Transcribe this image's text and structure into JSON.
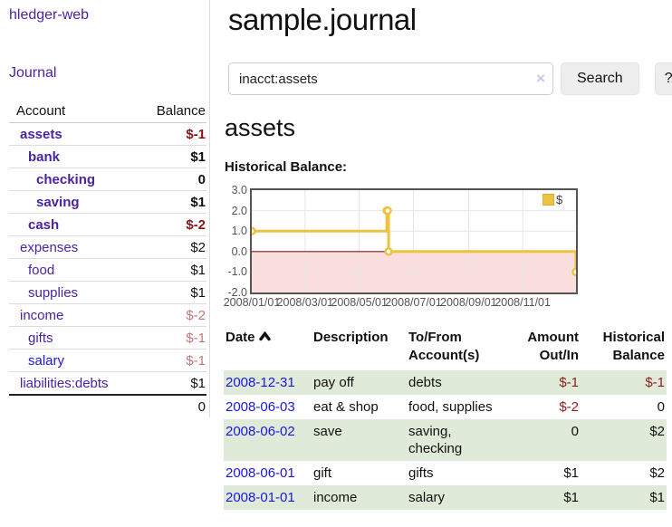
{
  "colors": {
    "link_visited": "#4a23a3",
    "link_unvisited": "#1b16e0",
    "negative_strong": "#8b1515",
    "negative_soft": "#c47777",
    "register_negative": "#8f1d1d",
    "row_stripe_green": "#dfead9",
    "chart_line": "#edc240",
    "chart_negative_fill": "#fadddd",
    "chart_zero_line": "#8b1a1a",
    "chart_grid": "#e6e6e6",
    "chart_border": "#545454"
  },
  "sidebar": {
    "brand": "hledger-web",
    "journal_link": "Journal",
    "accounts_table": {
      "header_account": "Account",
      "header_balance": "Balance",
      "rows": [
        {
          "name": "assets",
          "indent": 1,
          "bold": true,
          "link": "visited",
          "balance": "$-1",
          "balance_style": "negative-strong"
        },
        {
          "name": "bank",
          "indent": 2,
          "bold": true,
          "link": "visited",
          "balance": "$1",
          "balance_style": "positive"
        },
        {
          "name": "checking",
          "indent": 3,
          "bold": true,
          "link": "visited",
          "balance": "0",
          "balance_style": "positive"
        },
        {
          "name": "saving",
          "indent": 3,
          "bold": true,
          "link": "visited",
          "balance": "$1",
          "balance_style": "positive"
        },
        {
          "name": "cash",
          "indent": 2,
          "bold": true,
          "link": "visited",
          "balance": "$-2",
          "balance_style": "negative-strong"
        },
        {
          "name": "expenses",
          "indent": 1,
          "bold": false,
          "link": "visited",
          "balance": "$2",
          "balance_style": "positive"
        },
        {
          "name": "food",
          "indent": 2,
          "bold": false,
          "link": "visited",
          "balance": "$1",
          "balance_style": "positive"
        },
        {
          "name": "supplies",
          "indent": 2,
          "bold": false,
          "link": "visited",
          "balance": "$1",
          "balance_style": "positive"
        },
        {
          "name": "income",
          "indent": 1,
          "bold": false,
          "link": "visited",
          "balance": "$-2",
          "balance_style": "negative-soft"
        },
        {
          "name": "gifts",
          "indent": 2,
          "bold": false,
          "link": "visited",
          "balance": "$-1",
          "balance_style": "negative-soft"
        },
        {
          "name": "salary",
          "indent": 2,
          "bold": false,
          "link": "unvisited",
          "balance": "$-1",
          "balance_style": "negative-soft"
        },
        {
          "name": "liabilities:debts",
          "indent": 1,
          "bold": false,
          "link": "visited",
          "balance": "$1",
          "balance_style": "positive"
        }
      ],
      "total": "0"
    }
  },
  "main": {
    "title": "sample.journal",
    "search": {
      "value": "inacct:assets",
      "clear_icon": "×",
      "button_label": "Search",
      "help_label": "?"
    },
    "account_heading": "assets",
    "chart_label": "Historical Balance:"
  },
  "chart_data": {
    "type": "line",
    "step": true,
    "title": "Historical Balance:",
    "legend": {
      "label": "$",
      "position": "top-right"
    },
    "series": [
      {
        "name": "$",
        "color": "#edc240",
        "points": [
          [
            "2008-01-01",
            1
          ],
          [
            "2008-06-01",
            2
          ],
          [
            "2008-06-02",
            2
          ],
          [
            "2008-06-03",
            0
          ],
          [
            "2008-12-31",
            -1
          ]
        ]
      }
    ],
    "x_range": [
      "2008-01-01",
      "2008-12-31"
    ],
    "x_ticks": [
      "2008/01/01",
      "2008/03/01",
      "2008/05/01",
      "2008/07/01",
      "2008/09/01",
      "2008/11/01"
    ],
    "y_ticks": [
      "3.0",
      "2.0",
      "1.0",
      "0.0",
      "-1.0",
      "-2.0"
    ],
    "ylim": [
      -2,
      3
    ],
    "grid": true,
    "negative_region_fill": true
  },
  "register_table": {
    "headers": {
      "date": "Date",
      "sort": "ascending",
      "description": "Description",
      "tofrom_line1": "To/From",
      "tofrom_line2": "Account(s)",
      "amount_line1": "Amount",
      "amount_line2": "Out/In",
      "historical_line1": "Historical",
      "historical_line2": "Balance"
    },
    "rows": [
      {
        "date": "2008-12-31",
        "description": "pay off",
        "accounts": "debts",
        "amount": "$-1",
        "amount_negative": true,
        "balance": "$-1",
        "balance_negative": true
      },
      {
        "date": "2008-06-03",
        "description": "eat & shop",
        "accounts": "food, supplies",
        "amount": "$-2",
        "amount_negative": true,
        "balance": "0",
        "balance_negative": false
      },
      {
        "date": "2008-06-02",
        "description": "save",
        "accounts": "saving, checking",
        "amount": "0",
        "amount_negative": false,
        "balance": "$2",
        "balance_negative": false
      },
      {
        "date": "2008-06-01",
        "description": "gift",
        "accounts": "gifts",
        "amount": "$1",
        "amount_negative": false,
        "balance": "$2",
        "balance_negative": false
      },
      {
        "date": "2008-01-01",
        "description": "income",
        "accounts": "salary",
        "amount": "$1",
        "amount_negative": false,
        "balance": "$1",
        "balance_negative": false
      }
    ]
  }
}
